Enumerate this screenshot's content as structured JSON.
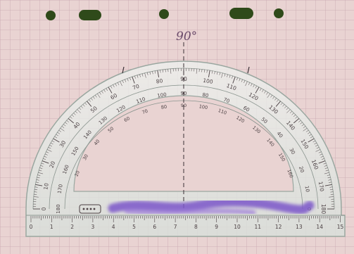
{
  "annotation": {
    "handwritten_angle": "90°"
  },
  "protractor": {
    "outer_scale": [
      "0",
      "10",
      "20",
      "30",
      "40",
      "50",
      "60",
      "70",
      "80",
      "90",
      "100",
      "110",
      "120",
      "130",
      "140",
      "150",
      "160",
      "170",
      "180"
    ],
    "middle_scale": [
      "0",
      "10",
      "20",
      "30",
      "40",
      "50",
      "60",
      "70",
      "80",
      "90",
      "100",
      "110",
      "120",
      "130",
      "140",
      "150",
      "160",
      "170",
      "180"
    ],
    "inner_scale": [
      "20",
      "30",
      "40",
      "50",
      "60",
      "70",
      "80",
      "90",
      "100",
      "110",
      "120",
      "130",
      "140",
      "150",
      "160"
    ]
  },
  "ruler": {
    "cm_labels": [
      "0",
      "1",
      "2",
      "3",
      "4",
      "5",
      "6",
      "7",
      "8",
      "9",
      "10",
      "11",
      "12",
      "13",
      "14",
      "15"
    ]
  },
  "colors": {
    "paper": "#e9d3d2",
    "grid": "#c8a6b0",
    "plastic": "#dfe6e2",
    "scale_ink": "#4a3f42",
    "redaction": "#7b55c9",
    "hole": "#2f4a1a"
  }
}
